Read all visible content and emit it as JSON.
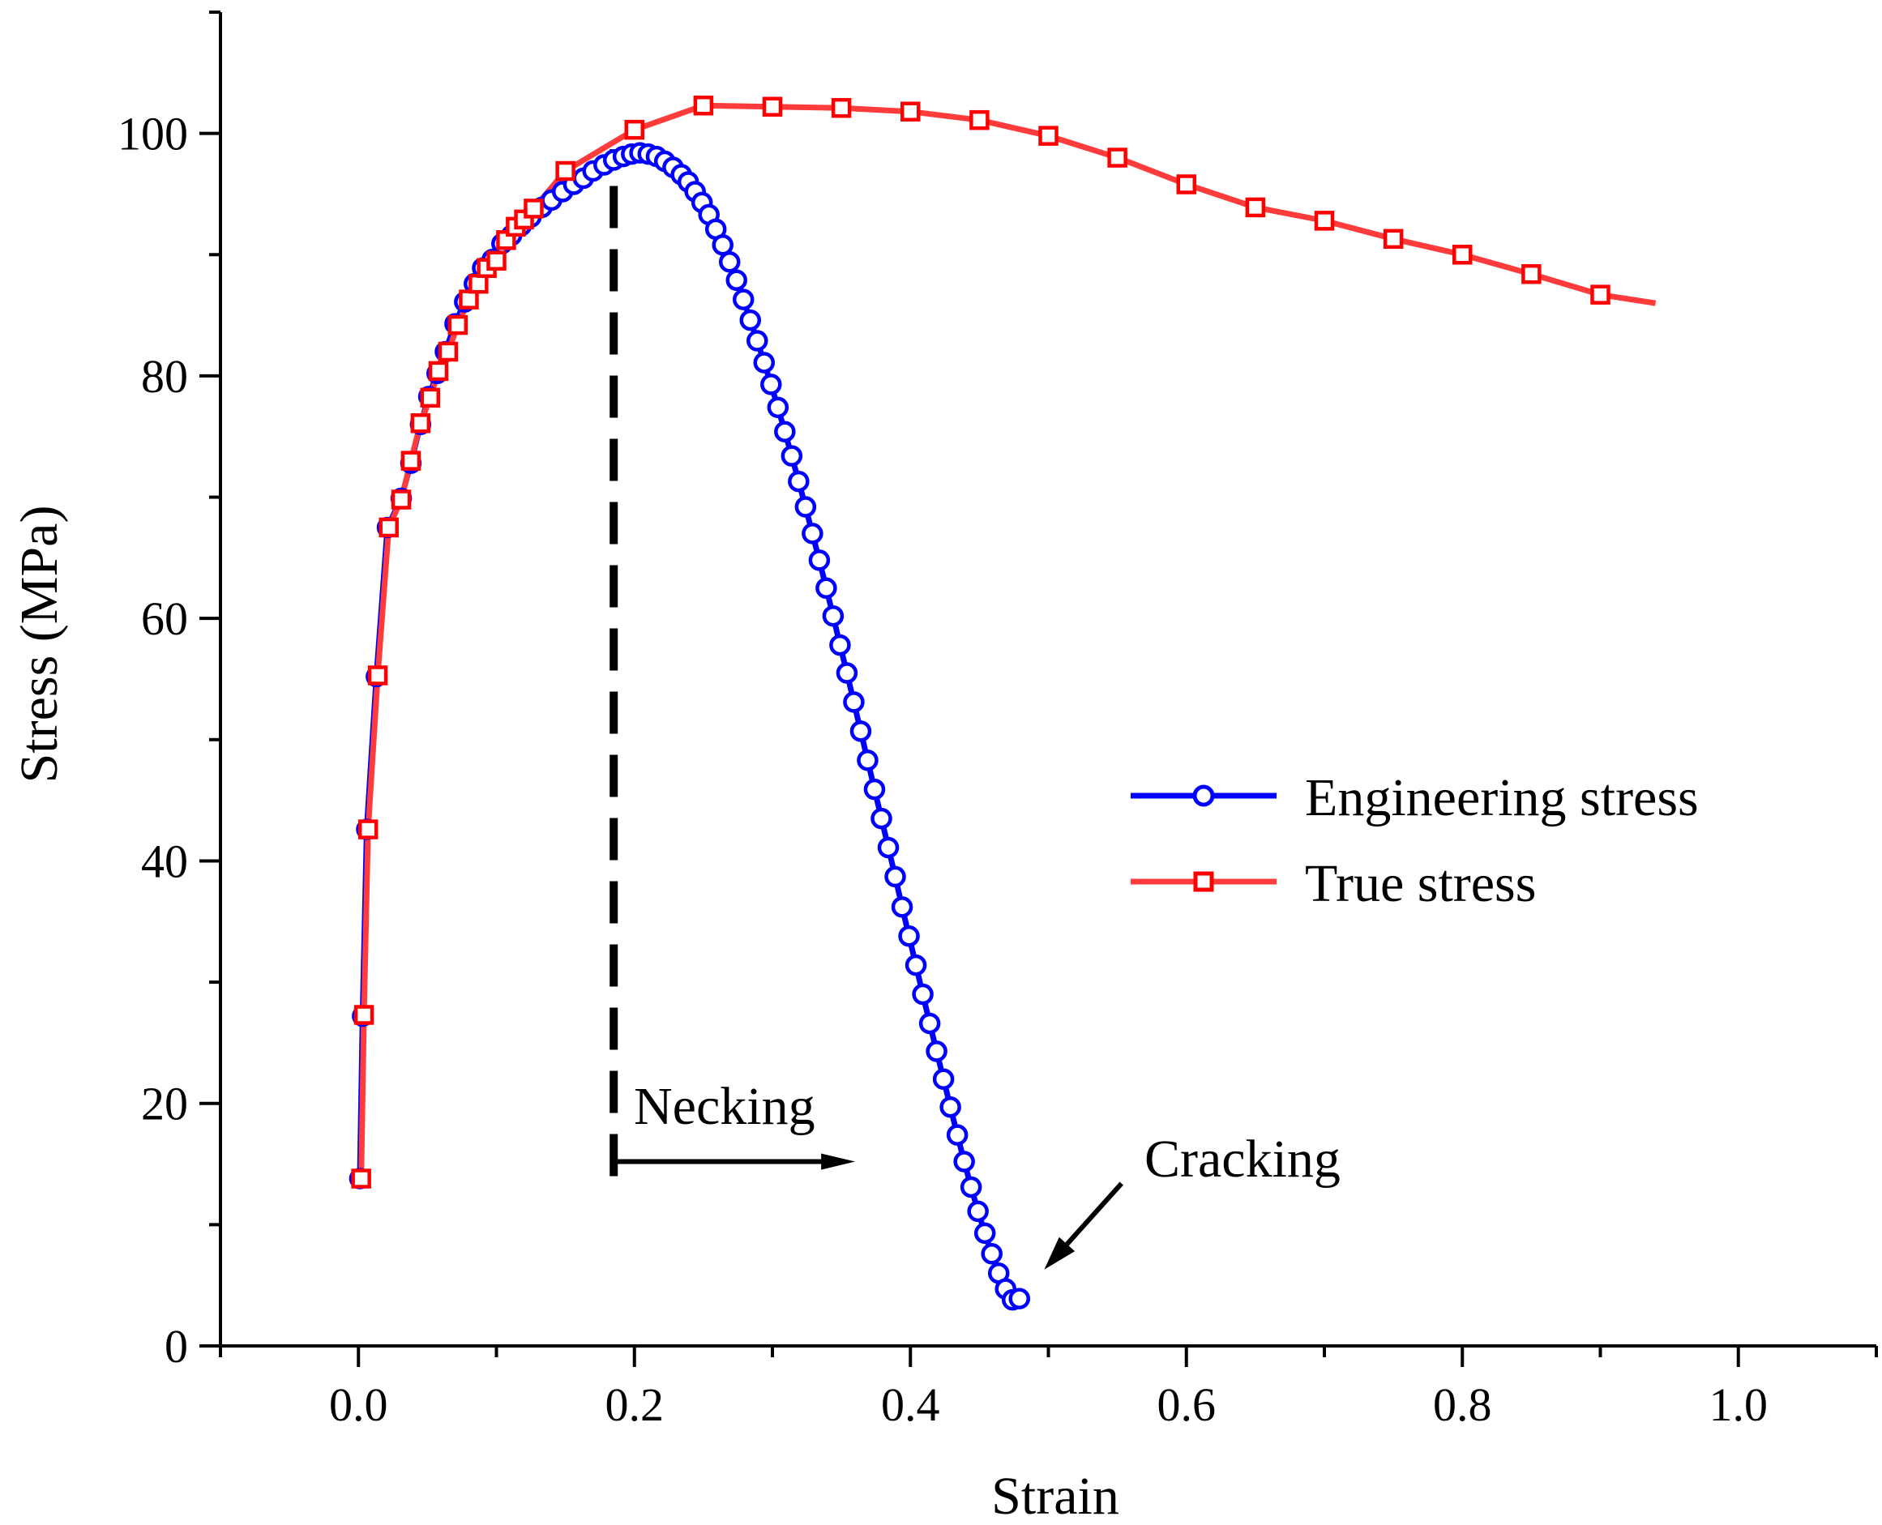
{
  "chart_data": {
    "type": "line",
    "title": "",
    "xlabel": "Strain",
    "ylabel": "Stress (MPa)",
    "xlim": [
      -0.1,
      1.1
    ],
    "ylim": [
      0,
      110
    ],
    "x_ticks": [
      "0.0",
      "0.2",
      "0.4",
      "0.6",
      "0.8",
      "1.0"
    ],
    "x_tick_values": [
      0.0,
      0.2,
      0.4,
      0.6,
      0.8,
      1.0
    ],
    "y_ticks": [
      "0",
      "20",
      "40",
      "60",
      "80",
      "100"
    ],
    "y_tick_values": [
      0,
      20,
      40,
      60,
      80,
      100
    ],
    "grid": false,
    "legend": {
      "position": "right-middle",
      "entries": [
        "Engineering stress",
        "True stress"
      ]
    },
    "series": [
      {
        "name": "Engineering stress",
        "color": "#0000ff",
        "marker": "circle",
        "x": [
          0.001,
          0.003,
          0.006,
          0.013,
          0.021,
          0.031,
          0.038,
          0.045,
          0.051,
          0.057,
          0.063,
          0.07,
          0.077,
          0.084,
          0.09,
          0.097,
          0.104,
          0.111,
          0.118,
          0.125,
          0.133,
          0.14,
          0.148,
          0.156,
          0.163,
          0.17,
          0.178,
          0.185,
          0.192,
          0.198,
          0.204,
          0.21,
          0.216,
          0.222,
          0.228,
          0.234,
          0.239,
          0.244,
          0.249,
          0.254,
          0.259,
          0.264,
          0.269,
          0.274,
          0.279,
          0.284,
          0.289,
          0.294,
          0.299,
          0.304,
          0.309,
          0.314,
          0.319,
          0.324,
          0.329,
          0.334,
          0.339,
          0.344,
          0.349,
          0.354,
          0.359,
          0.364,
          0.369,
          0.374,
          0.379,
          0.384,
          0.389,
          0.394,
          0.399,
          0.404,
          0.409,
          0.414,
          0.419,
          0.424,
          0.429,
          0.434,
          0.439,
          0.444,
          0.449,
          0.454,
          0.459,
          0.464,
          0.469,
          0.474,
          0.479
        ],
        "y": [
          13.8,
          27.2,
          42.6,
          55.2,
          67.5,
          69.9,
          72.8,
          76.0,
          78.3,
          80.2,
          82.0,
          84.3,
          86.1,
          87.6,
          88.9,
          89.6,
          90.9,
          91.6,
          92.4,
          93.1,
          93.9,
          94.5,
          95.2,
          95.8,
          96.3,
          96.9,
          97.4,
          97.8,
          98.1,
          98.3,
          98.4,
          98.3,
          98.1,
          97.7,
          97.2,
          96.6,
          96.0,
          95.2,
          94.3,
          93.3,
          92.1,
          90.8,
          89.4,
          87.9,
          86.3,
          84.6,
          82.9,
          81.1,
          79.3,
          77.4,
          75.4,
          73.4,
          71.3,
          69.2,
          67.0,
          64.8,
          62.5,
          60.2,
          57.8,
          55.5,
          53.1,
          50.7,
          48.3,
          45.9,
          43.5,
          41.1,
          38.7,
          36.2,
          33.8,
          31.4,
          29.0,
          26.6,
          24.3,
          22.0,
          19.7,
          17.4,
          15.2,
          13.1,
          11.1,
          9.3,
          7.6,
          6.0,
          4.7,
          3.8,
          3.9
        ]
      },
      {
        "name": "True stress",
        "color": "#ff3b3b",
        "marker": "square",
        "x": [
          0.002,
          0.004,
          0.007,
          0.014,
          0.022,
          0.031,
          0.038,
          0.045,
          0.052,
          0.058,
          0.065,
          0.072,
          0.08,
          0.087,
          0.093,
          0.1,
          0.107,
          0.114,
          0.12,
          0.127,
          0.15,
          0.2,
          0.25,
          0.3,
          0.35,
          0.4,
          0.45,
          0.5,
          0.55,
          0.6,
          0.65,
          0.7,
          0.75,
          0.8,
          0.85,
          0.9,
          0.94
        ],
        "y": [
          13.8,
          27.3,
          42.6,
          55.3,
          67.5,
          69.8,
          73.0,
          76.1,
          78.2,
          80.4,
          82.0,
          84.2,
          86.3,
          87.6,
          88.9,
          89.5,
          91.2,
          92.3,
          92.9,
          93.8,
          96.9,
          100.3,
          102.3,
          102.2,
          102.1,
          101.8,
          101.1,
          99.8,
          98.0,
          95.8,
          93.9,
          92.8,
          91.3,
          90.0,
          88.4,
          86.7,
          86.0
        ],
        "marker_x": [
          0.002,
          0.004,
          0.007,
          0.014,
          0.022,
          0.031,
          0.038,
          0.045,
          0.052,
          0.058,
          0.065,
          0.072,
          0.08,
          0.087,
          0.093,
          0.1,
          0.107,
          0.114,
          0.12,
          0.127,
          0.15,
          0.2,
          0.25,
          0.3,
          0.35,
          0.4,
          0.45,
          0.5,
          0.55,
          0.6,
          0.65,
          0.7,
          0.75,
          0.8,
          0.85,
          0.9
        ]
      }
    ],
    "annotations": [
      {
        "name": "necking",
        "text": "Necking",
        "x_start": 0.185,
        "x_end": 0.36,
        "y_arrow": 15.2,
        "y_text": 20.0
      },
      {
        "name": "cracking",
        "text": "Cracking",
        "x_text": 0.57,
        "y_text": 15.0,
        "arrow_from": [
          0.553,
          13.4
        ],
        "arrow_to": [
          0.497,
          6.3
        ]
      },
      {
        "name": "necking-onset-line",
        "x": 0.185,
        "y_from": 14.0,
        "y_to": 98.7
      }
    ]
  }
}
